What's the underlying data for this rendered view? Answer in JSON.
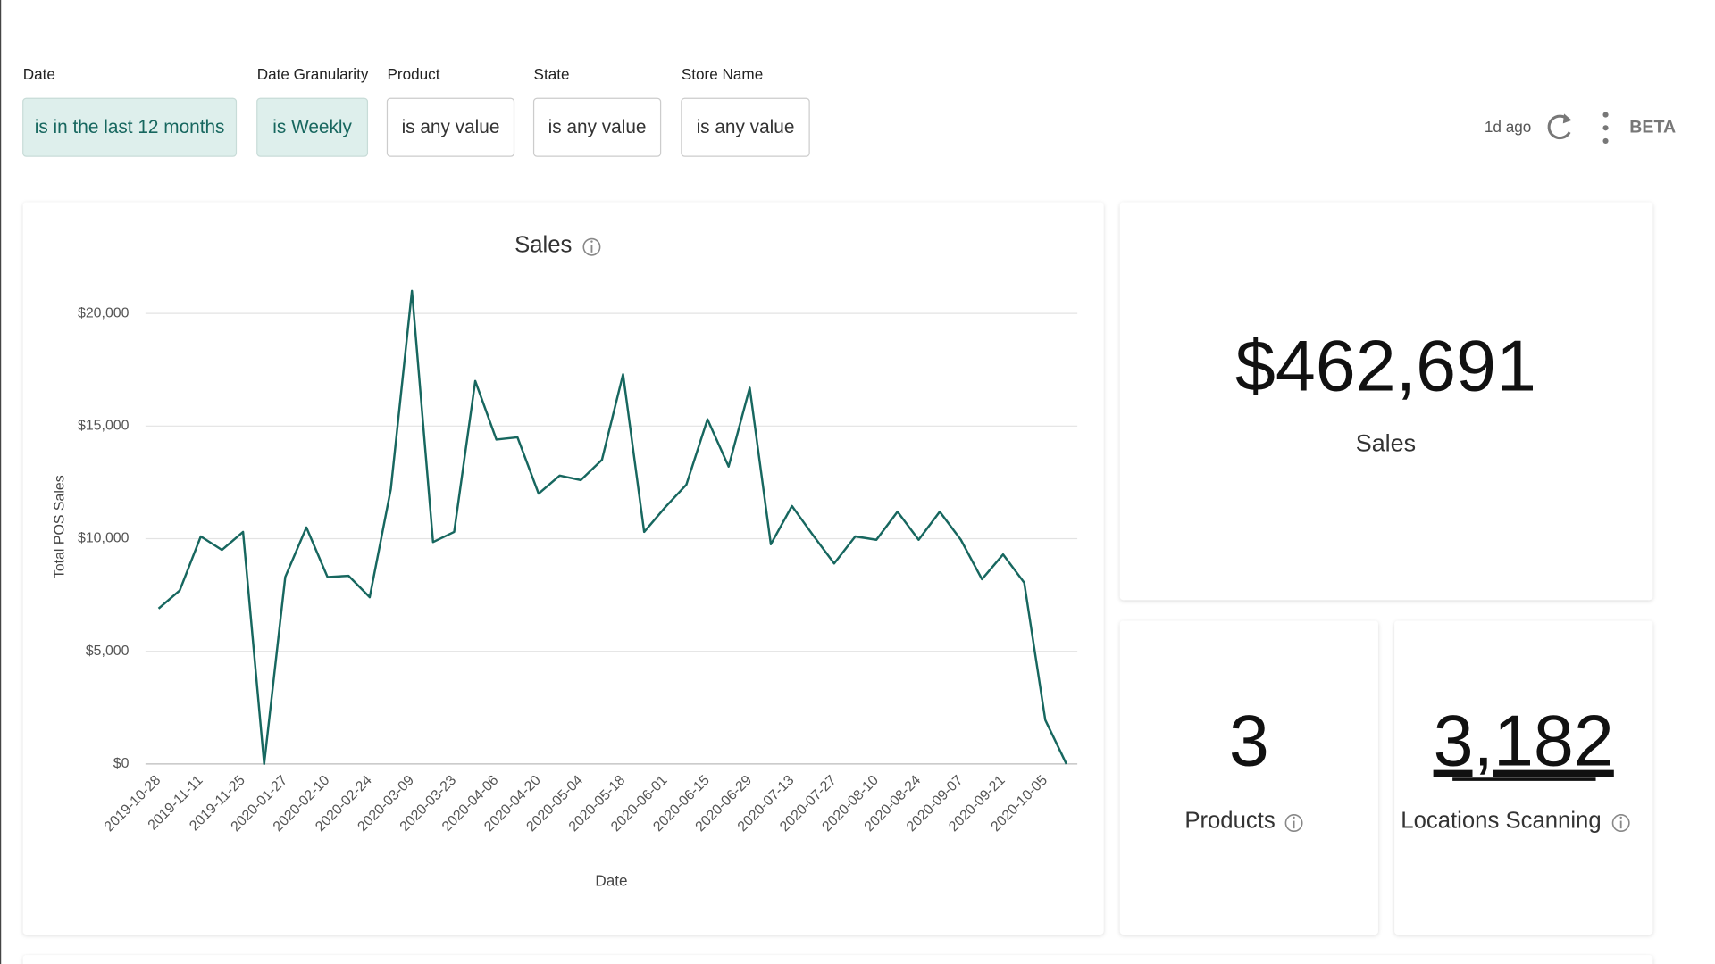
{
  "filters": [
    {
      "label": "Date",
      "value": "is in the last 12 months"
    },
    {
      "label": "Date Granularity",
      "value": "is Weekly"
    },
    {
      "label": "Product",
      "value": "is any value"
    },
    {
      "label": "State",
      "value": "is any value"
    },
    {
      "label": "Store Name",
      "value": "is any value"
    }
  ],
  "header": {
    "status": "1d ago",
    "badge": "BETA"
  },
  "kpis": {
    "sales": {
      "value": "$462,691",
      "label": "Sales"
    },
    "products": {
      "value": "3",
      "label": "Products"
    },
    "locations": {
      "value": "3,182",
      "label": "Locations Scanning"
    }
  },
  "chart_data": {
    "type": "line",
    "title": "Sales",
    "x_label": "Date",
    "y_label": "Total POS Sales",
    "categories": [
      "2019-10-28",
      null,
      "2019-11-11",
      null,
      "2019-11-25",
      null,
      "2020-01-27",
      null,
      "2020-02-10",
      null,
      "2020-02-24",
      null,
      "2020-03-09",
      null,
      "2020-03-23",
      null,
      "2020-04-06",
      null,
      "2020-04-20",
      null,
      "2020-05-04",
      null,
      "2020-05-18",
      null,
      "2020-06-01",
      null,
      "2020-06-15",
      null,
      "2020-06-29",
      null,
      "2020-07-13",
      null,
      "2020-07-27",
      null,
      "2020-08-10",
      null,
      "2020-08-24",
      null,
      "2020-09-07",
      null,
      "2020-09-21",
      null,
      "2020-10-05",
      null
    ],
    "values": [
      6900,
      7700,
      10100,
      9500,
      10300,
      0,
      8300,
      10500,
      8300,
      8350,
      7400,
      12200,
      21000,
      9850,
      10300,
      17000,
      14400,
      14500,
      12000,
      12800,
      12600,
      13500,
      17300,
      10300,
      11400,
      12400,
      15300,
      13200,
      16700,
      9750,
      11450,
      10150,
      8900,
      10100,
      9950,
      11200,
      9950,
      11200,
      9950,
      8200,
      9300,
      8050,
      1950,
      0
    ],
    "color": "#17675f",
    "ylim": [
      0,
      22000
    ],
    "yticks": [
      {
        "value": 0,
        "label": "$0"
      },
      {
        "value": 5000,
        "label": "$5,000"
      },
      {
        "value": 10000,
        "label": "$10,000"
      },
      {
        "value": 15000,
        "label": "$15,000"
      },
      {
        "value": 20000,
        "label": "$20,000"
      }
    ],
    "grid": true
  }
}
